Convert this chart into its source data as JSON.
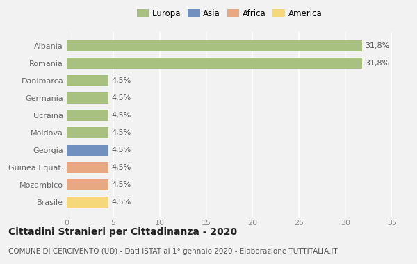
{
  "categories": [
    "Brasile",
    "Mozambico",
    "Guinea Equat.",
    "Georgia",
    "Moldova",
    "Ucraina",
    "Germania",
    "Danimarca",
    "Romania",
    "Albania"
  ],
  "values": [
    4.5,
    4.5,
    4.5,
    4.5,
    4.5,
    4.5,
    4.5,
    4.5,
    31.8,
    31.8
  ],
  "bar_colors": [
    "#f5d87a",
    "#e8a882",
    "#e8a882",
    "#7090c0",
    "#a8c080",
    "#a8c080",
    "#a8c080",
    "#a8c080",
    "#a8c080",
    "#a8c080"
  ],
  "bar_labels": [
    "4,5%",
    "4,5%",
    "4,5%",
    "4,5%",
    "4,5%",
    "4,5%",
    "4,5%",
    "4,5%",
    "31,8%",
    "31,8%"
  ],
  "legend_labels": [
    "Europa",
    "Asia",
    "Africa",
    "America"
  ],
  "legend_colors": [
    "#a8c080",
    "#7090c0",
    "#e8a882",
    "#f5d87a"
  ],
  "title": "Cittadini Stranieri per Cittadinanza - 2020",
  "subtitle": "COMUNE DI CERCIVENTO (UD) - Dati ISTAT al 1° gennaio 2020 - Elaborazione TUTTITALIA.IT",
  "xlim": [
    0,
    35
  ],
  "xticks": [
    0,
    5,
    10,
    15,
    20,
    25,
    30,
    35
  ],
  "background_color": "#f2f2f2",
  "grid_color": "#ffffff",
  "bar_height": 0.65,
  "title_fontsize": 10,
  "subtitle_fontsize": 7.5,
  "tick_fontsize": 8,
  "label_fontsize": 8
}
